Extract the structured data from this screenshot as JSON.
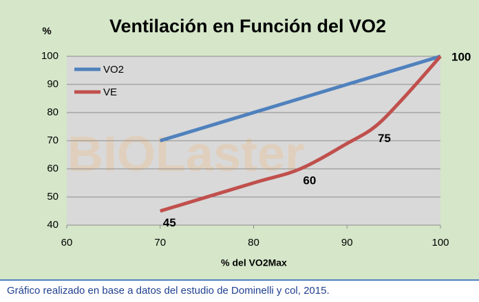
{
  "chart_data": {
    "type": "line",
    "title": "Ventilación en Función del VO2",
    "y_label": "%",
    "x_label": "% del VO2Max",
    "watermark": "BIOLaster",
    "footnote": "Gráfico realizado en base a datos del estudio de Dominelli y col, 2015.",
    "xlim": [
      60,
      100
    ],
    "xticks": [
      60,
      70,
      80,
      90,
      100
    ],
    "ylim": [
      40,
      100
    ],
    "yticks": [
      40,
      50,
      60,
      70,
      80,
      90,
      100
    ],
    "grid": true,
    "legend": "top-left",
    "series": [
      {
        "name": "VO2",
        "color": "#4f81bd",
        "x": [
          70,
          100
        ],
        "values": [
          70,
          100
        ]
      },
      {
        "name": "VE",
        "color": "#c0504d",
        "x": [
          70,
          80,
          85,
          90,
          93,
          96,
          100
        ],
        "values": [
          45,
          55,
          60,
          69,
          75,
          85,
          100
        ],
        "show_labels": [
          true,
          false,
          true,
          false,
          true,
          false,
          true
        ]
      }
    ]
  }
}
